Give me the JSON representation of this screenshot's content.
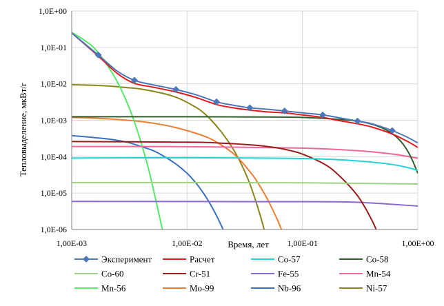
{
  "chart_data": {
    "type": "line",
    "title": "",
    "xlabel": "Время, лет",
    "ylabel": "Тепловыделение, мкВт/г",
    "x_scale": "log",
    "y_scale": "log",
    "xlim": [
      0.001,
      1
    ],
    "ylim": [
      1e-06,
      1
    ],
    "x_ticks": [
      {
        "value": 0.001,
        "label": "1,00E-03"
      },
      {
        "value": 0.01,
        "label": "1,00E-02"
      },
      {
        "value": 0.1,
        "label": "1,00E-01"
      },
      {
        "value": 1,
        "label": "1,00E+00"
      }
    ],
    "y_ticks": [
      {
        "value": 1,
        "label": "1,0E+00"
      },
      {
        "value": 0.1,
        "label": "1,0E-01"
      },
      {
        "value": 0.01,
        "label": "1,0E-02"
      },
      {
        "value": 0.001,
        "label": "1,0E-03"
      },
      {
        "value": 0.0001,
        "label": "1,0E-04"
      },
      {
        "value": 1e-05,
        "label": "1,0E-05"
      },
      {
        "value": 1e-06,
        "label": "1,0E-06"
      }
    ],
    "grid": {
      "x": true,
      "y": true
    },
    "legend_position": "bottom",
    "series": [
      {
        "name": "Эксперимент",
        "color": "#4a78b8",
        "markers": true,
        "points": [
          [
            0.001,
            0.25
          ],
          [
            0.0017,
            0.062
          ],
          [
            0.0025,
            0.022
          ],
          [
            0.0035,
            0.0125
          ],
          [
            0.005,
            0.0095
          ],
          [
            0.008,
            0.007
          ],
          [
            0.012,
            0.005
          ],
          [
            0.018,
            0.0032
          ],
          [
            0.025,
            0.0026
          ],
          [
            0.035,
            0.0022
          ],
          [
            0.05,
            0.002
          ],
          [
            0.07,
            0.0018
          ],
          [
            0.1,
            0.0016
          ],
          [
            0.15,
            0.0014
          ],
          [
            0.2,
            0.0012
          ],
          [
            0.3,
            0.00095
          ],
          [
            0.4,
            0.0008
          ],
          [
            0.6,
            0.00052
          ],
          [
            0.8,
            0.00035
          ],
          [
            1.0,
            0.00024
          ]
        ],
        "marker_x": [
          0.0017,
          0.0035,
          0.008,
          0.018,
          0.035,
          0.07,
          0.15,
          0.3,
          0.6
        ]
      },
      {
        "name": "Расчет",
        "color": "#e31a1c",
        "points": [
          [
            0.001,
            0.25
          ],
          [
            0.0017,
            0.058
          ],
          [
            0.0025,
            0.019
          ],
          [
            0.0035,
            0.0103
          ],
          [
            0.005,
            0.0082
          ],
          [
            0.008,
            0.006
          ],
          [
            0.012,
            0.0042
          ],
          [
            0.018,
            0.0027
          ],
          [
            0.025,
            0.0022
          ],
          [
            0.035,
            0.0019
          ],
          [
            0.05,
            0.0017
          ],
          [
            0.07,
            0.0016
          ],
          [
            0.1,
            0.0014
          ],
          [
            0.15,
            0.0012
          ],
          [
            0.2,
            0.001
          ],
          [
            0.3,
            0.0008
          ],
          [
            0.4,
            0.00065
          ],
          [
            0.6,
            0.00042
          ],
          [
            0.8,
            0.00027
          ],
          [
            1.0,
            0.00018
          ]
        ]
      },
      {
        "name": "Co-57",
        "color": "#1fd3d8",
        "points": [
          [
            0.001,
            9.15e-05
          ],
          [
            0.01,
            9.35e-05
          ],
          [
            0.05,
            9.15e-05
          ],
          [
            0.1,
            8.9e-05
          ],
          [
            0.2,
            8.3e-05
          ],
          [
            0.4,
            7.1e-05
          ],
          [
            0.6,
            6.1e-05
          ],
          [
            0.8,
            5.1e-05
          ],
          [
            1.0,
            4.2e-05
          ]
        ]
      },
      {
        "name": "Co-58",
        "color": "#2e5e2a",
        "points": [
          [
            0.001,
            0.00125
          ],
          [
            0.01,
            0.00125
          ],
          [
            0.05,
            0.00123
          ],
          [
            0.1,
            0.0012
          ],
          [
            0.2,
            0.00107
          ],
          [
            0.3,
            0.00094
          ],
          [
            0.4,
            0.00078
          ],
          [
            0.5,
            0.0006
          ],
          [
            0.6,
            0.00043
          ],
          [
            0.7,
            0.00028
          ],
          [
            0.8,
            0.00016
          ],
          [
            0.9,
            7.8e-05
          ],
          [
            1.0,
            3.5e-05
          ]
        ]
      },
      {
        "name": "Co-60",
        "color": "#9ed085",
        "points": [
          [
            0.001,
            1.95e-05
          ],
          [
            0.1,
            1.92e-05
          ],
          [
            1.0,
            1.78e-05
          ]
        ]
      },
      {
        "name": "Cr-51",
        "color": "#9b1b1b",
        "points": [
          [
            0.001,
            0.00026
          ],
          [
            0.01,
            0.00025
          ],
          [
            0.02,
            0.000235
          ],
          [
            0.04,
            0.000205
          ],
          [
            0.06,
            0.000175
          ],
          [
            0.08,
            0.000145
          ],
          [
            0.1,
            0.000118
          ],
          [
            0.15,
            6.6e-05
          ],
          [
            0.2,
            3.4e-05
          ],
          [
            0.3,
            8.5e-06
          ],
          [
            0.4,
            1.8e-06
          ],
          [
            0.47,
            5.5e-07
          ]
        ]
      },
      {
        "name": "Fe-55",
        "color": "#8c67d2",
        "points": [
          [
            0.001,
            5.9e-06
          ],
          [
            0.1,
            5.8e-06
          ],
          [
            0.3,
            5.6e-06
          ],
          [
            1.0,
            4.4e-06
          ]
        ]
      },
      {
        "name": "Mn-54",
        "color": "#f0669a",
        "points": [
          [
            0.001,
            0.00019
          ],
          [
            0.01,
            0.000188
          ],
          [
            0.1,
            0.000172
          ],
          [
            0.3,
            0.000146
          ],
          [
            0.6,
            0.000118
          ],
          [
            1.0,
            9.1e-05
          ]
        ]
      },
      {
        "name": "Mn-56",
        "color": "#55e86a",
        "points": [
          [
            0.001,
            0.26
          ],
          [
            0.0015,
            0.11
          ],
          [
            0.002,
            0.035
          ],
          [
            0.0025,
            0.011
          ],
          [
            0.003,
            0.0032
          ],
          [
            0.0035,
            0.0009
          ],
          [
            0.004,
            0.00024
          ],
          [
            0.0045,
            6.6e-05
          ],
          [
            0.005,
            1.7e-05
          ],
          [
            0.0055,
            4.5e-06
          ],
          [
            0.006,
            1.3e-06
          ],
          [
            0.0062,
            8.5e-07
          ]
        ]
      },
      {
        "name": "Mo-99",
        "color": "#ed7d31",
        "points": [
          [
            0.001,
            0.0012
          ],
          [
            0.002,
            0.0011
          ],
          [
            0.004,
            0.00092
          ],
          [
            0.006,
            0.00076
          ],
          [
            0.008,
            0.00063
          ],
          [
            0.01,
            0.00052
          ],
          [
            0.015,
            0.00034
          ],
          [
            0.02,
            0.000205
          ],
          [
            0.025,
            0.000124
          ],
          [
            0.03,
            7e-05
          ],
          [
            0.035,
            3.9e-05
          ],
          [
            0.04,
            2.2e-05
          ],
          [
            0.05,
            6.6e-06
          ],
          [
            0.06,
            2e-06
          ],
          [
            0.065,
            1.1e-06
          ],
          [
            0.068,
            7.5e-07
          ]
        ]
      },
      {
        "name": "Nb-96",
        "color": "#3a6fc1",
        "points": [
          [
            0.001,
            0.00038
          ],
          [
            0.002,
            0.00031
          ],
          [
            0.003,
            0.00025
          ],
          [
            0.004,
            0.00019
          ],
          [
            0.005,
            0.00015
          ],
          [
            0.006,
            0.000112
          ],
          [
            0.008,
            6.3e-05
          ],
          [
            0.01,
            3.5e-05
          ],
          [
            0.012,
            1.85e-05
          ],
          [
            0.014,
            9.5e-06
          ],
          [
            0.016,
            4.8e-06
          ],
          [
            0.018,
            2.4e-06
          ],
          [
            0.02,
            1.2e-06
          ],
          [
            0.021,
            8.5e-07
          ]
        ]
      },
      {
        "name": "Ni-57",
        "color": "#8c8418",
        "points": [
          [
            0.001,
            0.0095
          ],
          [
            0.002,
            0.0088
          ],
          [
            0.003,
            0.0079
          ],
          [
            0.004,
            0.0072
          ],
          [
            0.006,
            0.0056
          ],
          [
            0.008,
            0.0043
          ],
          [
            0.01,
            0.0031
          ],
          [
            0.013,
            0.0019
          ],
          [
            0.016,
            0.00105
          ],
          [
            0.02,
            0.00046
          ],
          [
            0.025,
            0.000165
          ],
          [
            0.03,
            5.6e-05
          ],
          [
            0.035,
            1.8e-05
          ],
          [
            0.04,
            5.2e-06
          ],
          [
            0.045,
            1.5e-06
          ],
          [
            0.047,
            8.5e-07
          ]
        ]
      }
    ]
  }
}
